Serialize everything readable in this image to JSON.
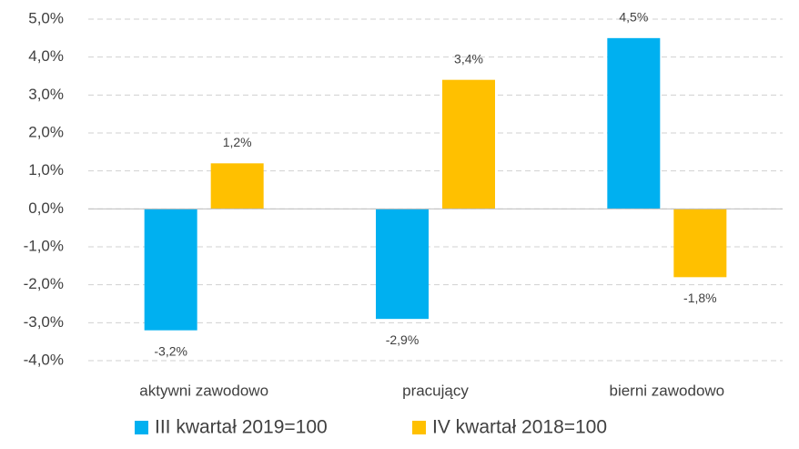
{
  "chart_data": {
    "type": "bar",
    "categories": [
      "aktywni zawodowo",
      "pracujący",
      "bierni zawodowo"
    ],
    "series": [
      {
        "name": "III kwartał 2019=100",
        "color": "#00b0f0",
        "values": [
          -3.2,
          -2.9,
          4.5
        ],
        "value_labels": [
          "-3,2%",
          "-2,9%",
          "4,5%"
        ]
      },
      {
        "name": "IV kwartał 2018=100",
        "color": "#ffc000",
        "values": [
          1.2,
          3.4,
          -1.8
        ],
        "value_labels": [
          "1,2%",
          "3,4%",
          "-1,8%"
        ]
      }
    ],
    "ylim": [
      -4,
      5
    ],
    "yticks": [
      {
        "value": -4,
        "label": "-4,0%"
      },
      {
        "value": -3,
        "label": "-3,0%"
      },
      {
        "value": -2,
        "label": "-2,0%"
      },
      {
        "value": -1,
        "label": "-1,0%"
      },
      {
        "value": 0,
        "label": "0,0%"
      },
      {
        "value": 1,
        "label": "1,0%"
      },
      {
        "value": 2,
        "label": "2,0%"
      },
      {
        "value": 3,
        "label": "3,0%"
      },
      {
        "value": 4,
        "label": "4,0%"
      },
      {
        "value": 5,
        "label": "5,0%"
      }
    ],
    "grid": true,
    "legend": "bottom"
  }
}
